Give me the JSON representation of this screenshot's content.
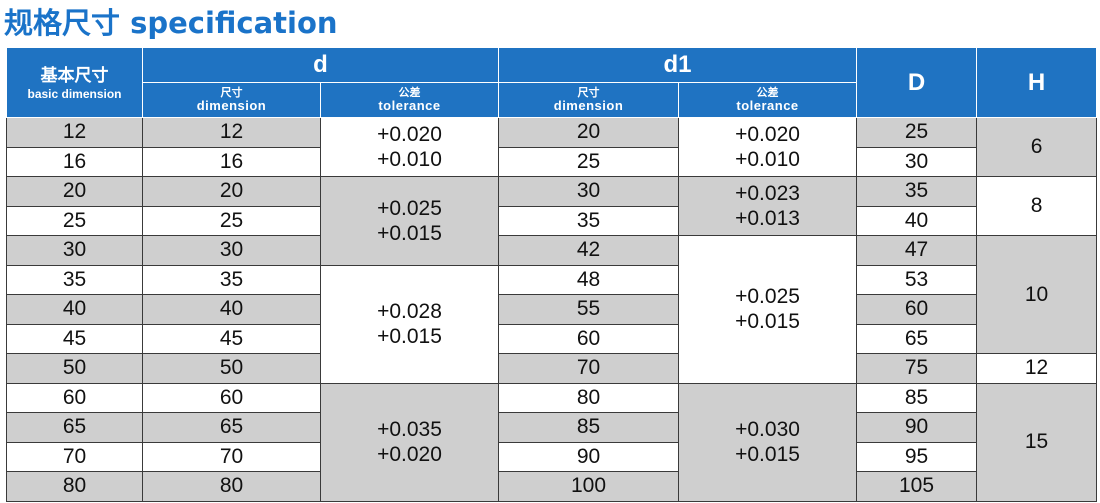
{
  "title": "规格尺寸 specification",
  "header": {
    "basic_zh": "基本尺寸",
    "basic_en": "basic dimension",
    "d": "d",
    "d1": "d1",
    "D": "D",
    "H": "H",
    "dimension_zh": "尺寸",
    "dimension_en": "dimension",
    "tolerance_zh": "公差",
    "tolerance_en": "tolerance"
  },
  "basic": [
    "12",
    "16",
    "20",
    "25",
    "30",
    "35",
    "40",
    "45",
    "50",
    "60",
    "65",
    "70",
    "80"
  ],
  "d_dim": [
    "12",
    "16",
    "20",
    "25",
    "30",
    "35",
    "40",
    "45",
    "50",
    "60",
    "65",
    "70",
    "80"
  ],
  "d_tol": [
    {
      "upper": "+0.020",
      "lower": "+0.010"
    },
    {
      "upper": "+0.025",
      "lower": "+0.015"
    },
    {
      "upper": "+0.028",
      "lower": "+0.015"
    },
    {
      "upper": "+0.035",
      "lower": "+0.020"
    }
  ],
  "d1_dim": [
    "20",
    "25",
    "30",
    "35",
    "42",
    "48",
    "55",
    "60",
    "70",
    "80",
    "85",
    "90",
    "100"
  ],
  "d1_tol": [
    {
      "upper": "+0.020",
      "lower": "+0.010"
    },
    {
      "upper": "+0.023",
      "lower": "+0.013"
    },
    {
      "upper": "+0.025",
      "lower": "+0.015"
    },
    {
      "upper": "+0.030",
      "lower": "+0.015"
    }
  ],
  "D": [
    "25",
    "30",
    "35",
    "40",
    "47",
    "53",
    "60",
    "65",
    "75",
    "85",
    "90",
    "95",
    "105"
  ],
  "H": [
    "6",
    "8",
    "10",
    "12",
    "15"
  ]
}
